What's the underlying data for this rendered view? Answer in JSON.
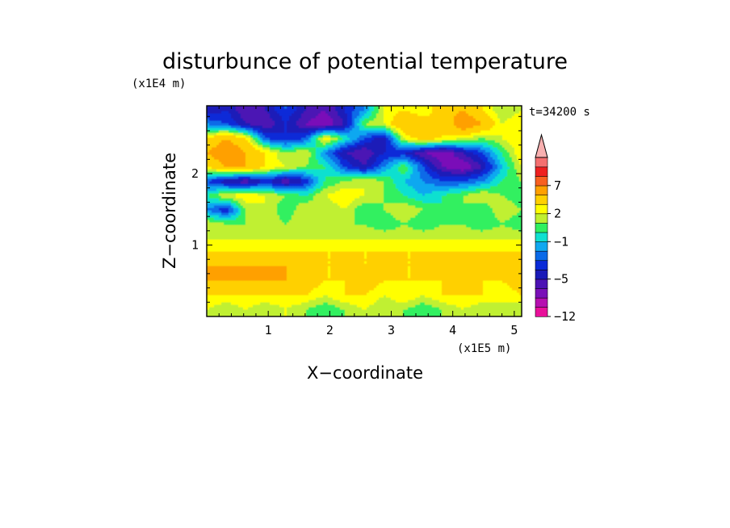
{
  "chart_data": {
    "type": "heatmap",
    "title": "disturbunce of potential temperature",
    "xlabel": "X−coordinate",
    "ylabel": "Z−coordinate",
    "x_unit": "(x1E5 m)",
    "y_unit": "(x1E4 m)",
    "time_label": "t=34200 s",
    "xlim": [
      0,
      5.12
    ],
    "ylim": [
      0,
      2.95
    ],
    "x_ticks": [
      1,
      2,
      3,
      4,
      5
    ],
    "y_ticks": [
      1,
      2
    ],
    "colorbar": {
      "levels": [
        -12,
        -10,
        -8,
        -6,
        -5,
        -4,
        -3,
        -2,
        -1,
        0,
        1,
        2,
        3,
        5,
        7,
        9,
        11
      ],
      "tick_labels": [
        "−12",
        "−5",
        "−1",
        "2",
        "7"
      ],
      "tick_values": [
        -12,
        -5,
        -1,
        2,
        7
      ],
      "colors": [
        "#e8109a",
        "#b60fb0",
        "#7a10b8",
        "#4c12b4",
        "#1a1ab8",
        "#0a2bd8",
        "#0a6ae8",
        "#10a8f0",
        "#10e0d0",
        "#30f060",
        "#c0f030",
        "#ffff00",
        "#ffd000",
        "#ffa000",
        "#f86020",
        "#ee2020",
        "#f47070",
        "#f8b0b0"
      ],
      "extend": "max"
    },
    "field": {
      "x": [
        0.0,
        0.32,
        0.64,
        0.96,
        1.28,
        1.6,
        1.92,
        2.24,
        2.56,
        2.88,
        3.2,
        3.52,
        3.84,
        4.16,
        4.48,
        4.8,
        5.12
      ],
      "z": [
        0.1,
        0.3,
        0.5,
        0.7,
        0.9,
        1.1,
        1.3,
        1.5,
        1.7,
        1.9,
        2.1,
        2.3,
        2.5,
        2.7,
        2.9
      ],
      "values": [
        [
          2,
          1,
          2,
          1,
          2,
          1,
          0,
          1,
          2,
          1,
          1,
          0,
          1,
          2,
          1,
          2,
          1
        ],
        [
          3,
          3,
          3,
          3,
          3,
          3,
          2,
          3,
          3,
          2,
          3,
          2,
          3,
          3,
          3,
          2,
          3
        ],
        [
          5,
          5,
          5,
          5,
          5,
          4,
          3,
          3,
          4,
          3,
          3,
          3,
          3,
          4,
          3,
          3,
          4
        ],
        [
          5,
          5,
          5,
          5,
          5,
          4,
          3,
          3,
          3,
          3,
          3,
          3,
          3,
          3,
          3,
          3,
          4
        ],
        [
          3,
          3,
          3,
          3,
          3,
          3,
          3,
          3,
          3,
          3,
          3,
          3,
          3,
          3,
          3,
          3,
          3
        ],
        [
          2,
          2,
          2,
          2,
          2,
          2,
          2,
          2,
          2,
          2,
          2,
          2,
          2,
          2,
          2,
          2,
          2
        ],
        [
          2,
          1,
          1,
          2,
          1,
          2,
          1,
          1,
          1,
          0,
          1,
          0,
          1,
          1,
          0,
          1,
          0
        ],
        [
          -2,
          -4,
          1,
          2,
          0,
          2,
          1,
          2,
          0,
          1,
          2,
          1,
          0,
          1,
          0,
          2,
          1
        ],
        [
          0,
          2,
          3,
          2,
          1,
          0,
          2,
          3,
          2,
          1,
          0,
          -1,
          0,
          1,
          2,
          1,
          0
        ],
        [
          -3,
          -5,
          -6,
          -4,
          -6,
          -4,
          0,
          1,
          2,
          1,
          -1,
          -2,
          -3,
          -3,
          -2,
          0,
          1
        ],
        [
          3,
          5,
          5,
          3,
          2,
          1,
          0,
          -3,
          -5,
          -2,
          1,
          -3,
          -6,
          -7,
          -5,
          -1,
          2
        ],
        [
          5,
          7,
          5,
          3,
          1,
          2,
          -2,
          -5,
          -6,
          -4,
          -4,
          -6,
          -7,
          -5,
          -3,
          0,
          3
        ],
        [
          3,
          5,
          3,
          -3,
          -4,
          -3,
          3,
          0,
          -3,
          -5,
          2,
          4,
          3,
          2,
          1,
          2,
          3
        ],
        [
          -2,
          -3,
          -5,
          -6,
          -4,
          -6,
          -7,
          -5,
          1,
          2,
          5,
          4,
          3,
          7,
          5,
          2,
          3
        ],
        [
          -5,
          -4,
          -6,
          -5,
          -3,
          -5,
          -6,
          -4,
          -2,
          2,
          3,
          2,
          4,
          5,
          3,
          1,
          2
        ]
      ]
    }
  }
}
